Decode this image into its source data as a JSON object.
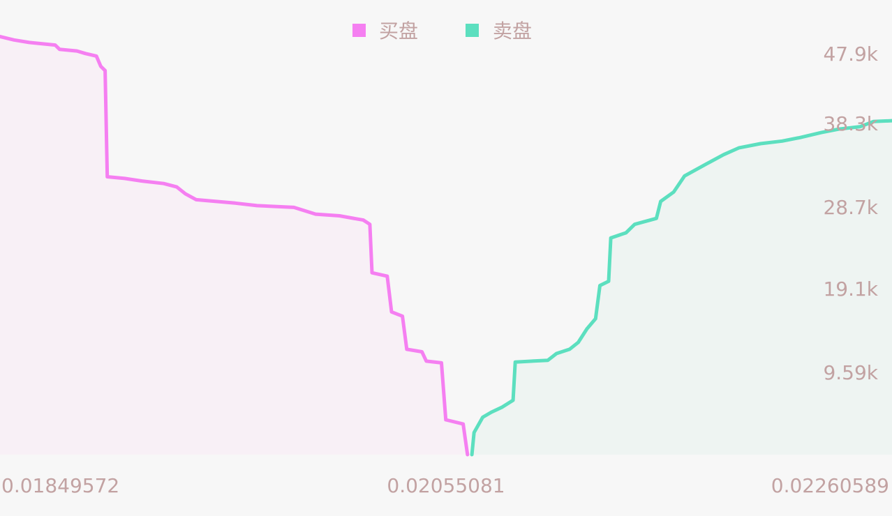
{
  "chart_data": {
    "type": "area",
    "chart_kind": "depth-chart",
    "legend_position": "top-center",
    "grid": false,
    "x_tick_labels": [
      "0.01849572",
      "0.02055081",
      "0.02260589"
    ],
    "y_tick_labels": [
      "9.59k",
      "19.1k",
      "28.7k",
      "38.3k",
      "47.9k"
    ],
    "y_ticks": [
      9590,
      19100,
      28700,
      38300,
      47900
    ],
    "xlim": [
      0.01849572,
      0.02260589
    ],
    "ylim": [
      0,
      53500
    ],
    "series": [
      {
        "name": "买盘",
        "color": "#f57ff1",
        "fill": "#f8f0f6",
        "points": [
          [
            0.01849572,
            49200
          ],
          [
            0.01856,
            48800
          ],
          [
            0.01863,
            48500
          ],
          [
            0.01875,
            48200
          ],
          [
            0.01877,
            47700
          ],
          [
            0.01885,
            47500
          ],
          [
            0.01889,
            47200
          ],
          [
            0.01894,
            46900
          ],
          [
            0.01896,
            45700
          ],
          [
            0.01898,
            45200
          ],
          [
            0.01899,
            32700
          ],
          [
            0.01907,
            32500
          ],
          [
            0.01915,
            32200
          ],
          [
            0.01925,
            31900
          ],
          [
            0.01931,
            31500
          ],
          [
            0.01935,
            30700
          ],
          [
            0.0194,
            30000
          ],
          [
            0.01958,
            29600
          ],
          [
            0.01968,
            29300
          ],
          [
            0.01985,
            29100
          ],
          [
            0.01995,
            28300
          ],
          [
            0.02006,
            28100
          ],
          [
            0.02017,
            27600
          ],
          [
            0.0202,
            27100
          ],
          [
            0.02021,
            21400
          ],
          [
            0.02028,
            21000
          ],
          [
            0.0203,
            16800
          ],
          [
            0.02035,
            16300
          ],
          [
            0.02037,
            12400
          ],
          [
            0.02044,
            12100
          ],
          [
            0.02046,
            11000
          ],
          [
            0.02053,
            10800
          ],
          [
            0.02055,
            4100
          ],
          [
            0.02063,
            3600
          ],
          [
            0.02065,
            0
          ]
        ]
      },
      {
        "name": "卖盘",
        "color": "#5cdfbf",
        "fill": "#eef4f2",
        "points": [
          [
            0.02067,
            0
          ],
          [
            0.02068,
            2600
          ],
          [
            0.02072,
            4400
          ],
          [
            0.02076,
            5000
          ],
          [
            0.02081,
            5600
          ],
          [
            0.02086,
            6400
          ],
          [
            0.02087,
            10900
          ],
          [
            0.02102,
            11100
          ],
          [
            0.02106,
            11900
          ],
          [
            0.02112,
            12400
          ],
          [
            0.02116,
            13200
          ],
          [
            0.0212,
            14800
          ],
          [
            0.02124,
            16000
          ],
          [
            0.02126,
            19900
          ],
          [
            0.0213,
            20400
          ],
          [
            0.02131,
            25500
          ],
          [
            0.02138,
            26100
          ],
          [
            0.02142,
            27100
          ],
          [
            0.02152,
            27800
          ],
          [
            0.02154,
            29800
          ],
          [
            0.0216,
            30900
          ],
          [
            0.02165,
            32800
          ],
          [
            0.02175,
            34200
          ],
          [
            0.02183,
            35300
          ],
          [
            0.0219,
            36100
          ],
          [
            0.022,
            36600
          ],
          [
            0.0221,
            36900
          ],
          [
            0.02218,
            37300
          ],
          [
            0.02228,
            37900
          ],
          [
            0.02236,
            38300
          ],
          [
            0.02246,
            38600
          ],
          [
            0.02252,
            39200
          ],
          [
            0.02260589,
            39300
          ]
        ]
      }
    ]
  }
}
